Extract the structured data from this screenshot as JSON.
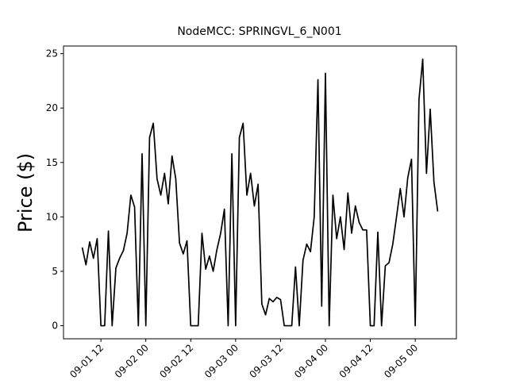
{
  "chart_data": {
    "type": "line",
    "title": "NodeMCC: SPRINGVL_6_N001",
    "ylabel": "Price ($)",
    "x": [
      "09-01 07",
      "09-01 08",
      "09-01 09",
      "09-01 10",
      "09-01 11",
      "09-01 12",
      "09-01 13",
      "09-01 14",
      "09-01 15",
      "09-01 16",
      "09-01 17",
      "09-01 18",
      "09-01 19",
      "09-01 20",
      "09-01 21",
      "09-01 22",
      "09-01 23",
      "09-02 00",
      "09-02 01",
      "09-02 02",
      "09-02 03",
      "09-02 04",
      "09-02 05",
      "09-02 06",
      "09-02 07",
      "09-02 08",
      "09-02 09",
      "09-02 10",
      "09-02 11",
      "09-02 12",
      "09-02 13",
      "09-02 14",
      "09-02 15",
      "09-02 16",
      "09-02 17",
      "09-02 18",
      "09-02 19",
      "09-02 20",
      "09-02 21",
      "09-02 22",
      "09-02 23",
      "09-03 00",
      "09-03 01",
      "09-03 02",
      "09-03 03",
      "09-03 04",
      "09-03 05",
      "09-03 06",
      "09-03 07",
      "09-03 08",
      "09-03 09",
      "09-03 10",
      "09-03 11",
      "09-03 12",
      "09-03 13",
      "09-03 14",
      "09-03 15",
      "09-03 16",
      "09-03 17",
      "09-03 18",
      "09-03 19",
      "09-03 20",
      "09-03 21",
      "09-03 22",
      "09-03 23",
      "09-04 00",
      "09-04 01",
      "09-04 02",
      "09-04 03",
      "09-04 04",
      "09-04 05",
      "09-04 06",
      "09-04 07",
      "09-04 08",
      "09-04 09",
      "09-04 10",
      "09-04 11",
      "09-04 12",
      "09-04 13",
      "09-04 14",
      "09-04 15",
      "09-04 16",
      "09-04 17",
      "09-04 18",
      "09-04 19",
      "09-04 20",
      "09-04 21",
      "09-04 22",
      "09-04 23",
      "09-05 00",
      "09-05 01",
      "09-05 02",
      "09-05 03",
      "09-05 04",
      "09-05 05",
      "09-05 06"
    ],
    "series": [
      {
        "color": "#000000",
        "values": [
          7.2,
          5.6,
          7.7,
          6.2,
          8.0,
          0,
          0,
          8.7,
          0,
          5.3,
          6.2,
          6.9,
          8.5,
          12.0,
          10.9,
          0,
          15.8,
          0,
          17.3,
          18.6,
          13.5,
          12.0,
          14.0,
          11.2,
          15.6,
          13.5,
          7.6,
          6.6,
          7.8,
          0,
          0,
          0,
          8.5,
          5.2,
          6.4,
          5.0,
          7.0,
          8.5,
          10.7,
          0,
          15.8,
          0,
          17.3,
          18.6,
          12.0,
          14.0,
          11.0,
          13.0,
          2.0,
          1.0,
          2.5,
          2.2,
          2.6,
          2.4,
          0,
          0,
          0,
          5.4,
          0,
          6.0,
          7.5,
          6.8,
          10.0,
          22.6,
          1.8,
          23.2,
          0,
          12.0,
          8.0,
          10.0,
          7.0,
          12.2,
          8.5,
          11.0,
          9.5,
          8.8,
          8.8,
          0,
          0,
          8.6,
          0,
          5.5,
          5.8,
          7.5,
          10.0,
          12.6,
          10.0,
          13.6,
          15.3,
          0,
          20.8,
          24.5,
          14.0,
          19.9,
          13.2,
          10.5
        ]
      }
    ],
    "xlim": [
      "09-01 02",
      "09-05 11"
    ],
    "xticks": [
      "09-01 12",
      "09-02 00",
      "09-02 12",
      "09-03 00",
      "09-03 12",
      "09-04 00",
      "09-04 12",
      "09-05 00"
    ],
    "ylim": [
      -1.2,
      25.7
    ],
    "yticks": [
      0,
      5,
      10,
      15,
      20,
      25
    ]
  }
}
